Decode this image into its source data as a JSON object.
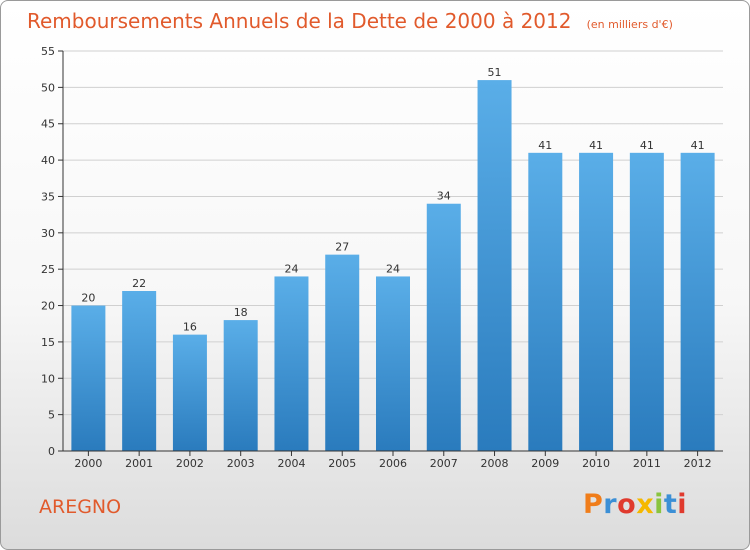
{
  "header": {
    "title": "Remboursements Annuels de la Dette de 2000 à 2012",
    "subtitle": "(en milliers d'€)"
  },
  "footer": {
    "commune": "AREGNO",
    "logo_text": "Proxiti",
    "logo_colors": [
      "#f07d1a",
      "#3b8fd6",
      "#e03a2e",
      "#f5b800",
      "#8ac43f",
      "#3b8fd6",
      "#e03a2e"
    ]
  },
  "chart_data": {
    "type": "bar",
    "title": "Remboursements Annuels de la Dette de 2000 à 2012",
    "subtitle": "(en milliers d'€)",
    "categories": [
      "2000",
      "2001",
      "2002",
      "2003",
      "2004",
      "2005",
      "2006",
      "2007",
      "2008",
      "2009",
      "2010",
      "2011",
      "2012"
    ],
    "values": [
      20,
      22,
      16,
      18,
      24,
      27,
      24,
      34,
      51,
      41,
      41,
      41,
      41
    ],
    "ylim": [
      0,
      55
    ],
    "yticks": [
      0,
      5,
      10,
      15,
      20,
      25,
      30,
      35,
      40,
      45,
      50,
      55
    ],
    "grid": true,
    "bar_color_top": "#5aaee8",
    "bar_color_bottom": "#2a7bbd",
    "grid_color": "#d0d0d0"
  }
}
